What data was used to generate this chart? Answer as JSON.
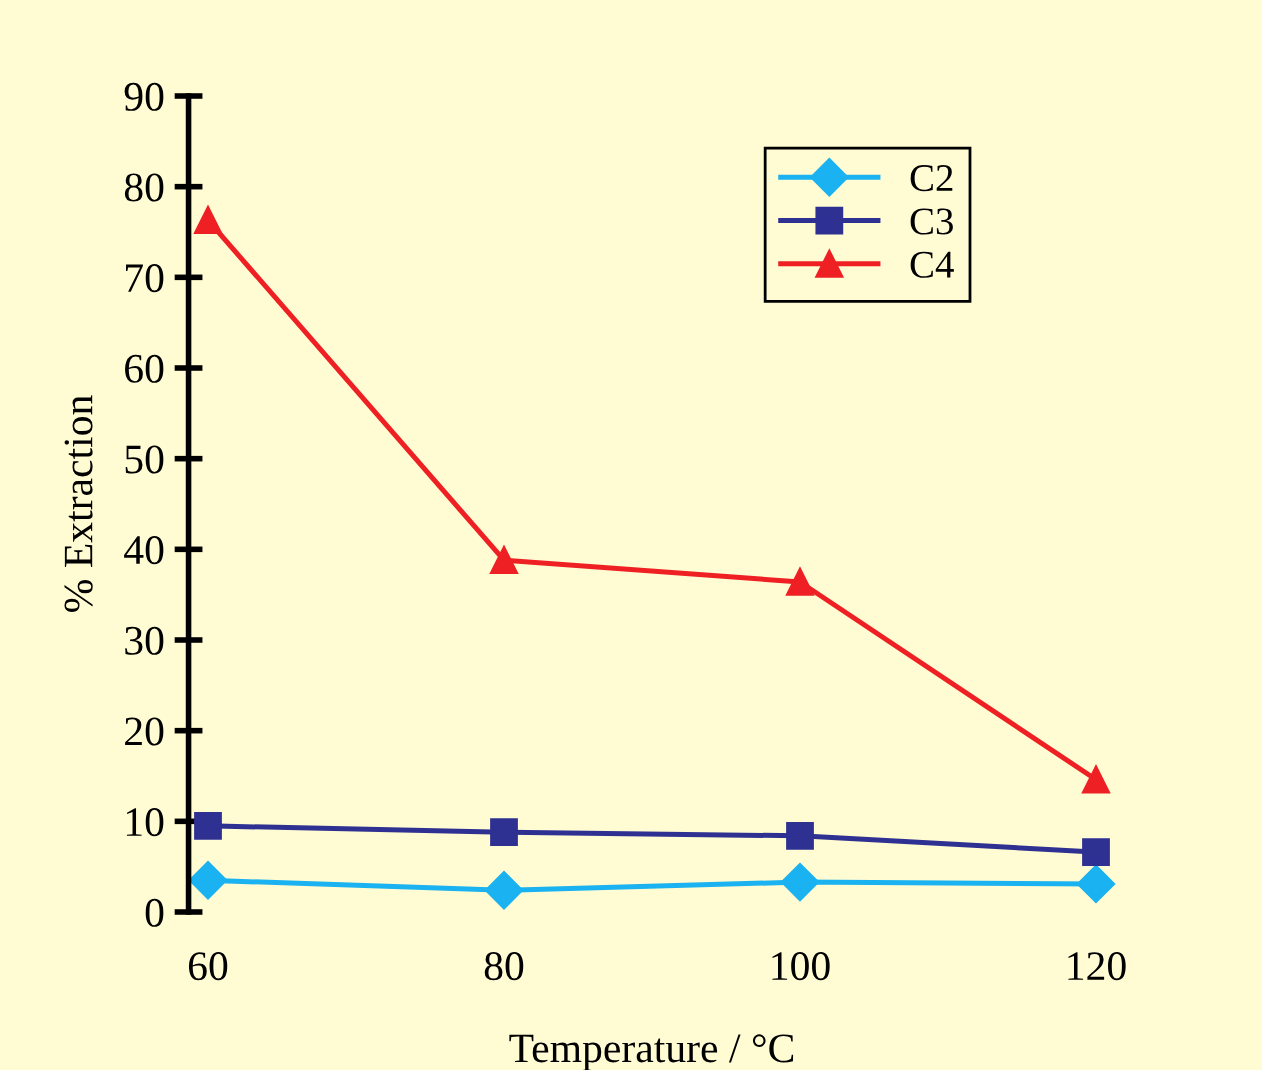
{
  "chart_data": {
    "type": "line",
    "xlabel": "Temperature / °C",
    "ylabel": "% Extraction",
    "x": [
      60,
      80,
      100,
      120
    ],
    "series": [
      {
        "name": "C2",
        "color": "#1ab2f0",
        "marker": "diamond",
        "values": [
          3.5,
          2.4,
          3.3,
          3.1
        ]
      },
      {
        "name": "C3",
        "color": "#2e3192",
        "marker": "square",
        "values": [
          9.5,
          8.8,
          8.4,
          6.6
        ]
      },
      {
        "name": "C4",
        "color": "#ee2024",
        "marker": "triangle",
        "values": [
          76.3,
          38.8,
          36.4,
          14.6
        ]
      }
    ],
    "xlim": [
      60,
      120
    ],
    "ylim": [
      0,
      90
    ],
    "xticks": [
      60,
      80,
      100,
      120
    ],
    "yticks": [
      0,
      10,
      20,
      30,
      40,
      50,
      60,
      70,
      80,
      90
    ],
    "legend": "top right",
    "grid": false,
    "line_style": "solid"
  }
}
